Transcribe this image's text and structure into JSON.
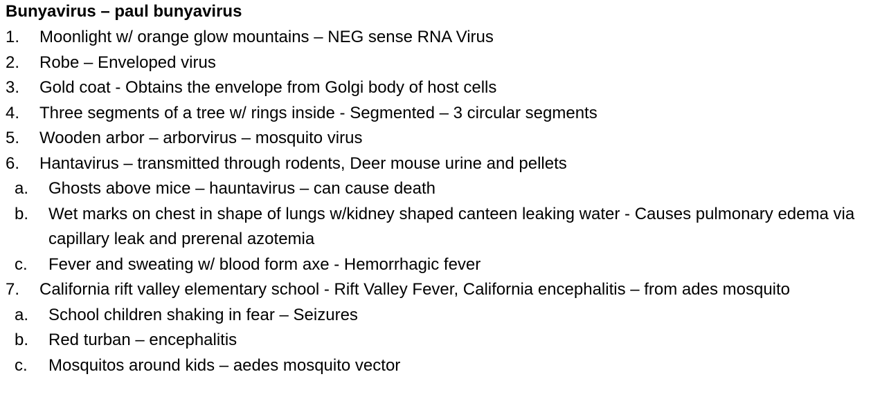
{
  "document": {
    "title": "Bunyavirus – paul bunyavirus",
    "items": [
      {
        "marker": "1.",
        "text": "Moonlight w/ orange glow mountains – NEG sense RNA Virus"
      },
      {
        "marker": "2.",
        "text": "Robe – Enveloped virus"
      },
      {
        "marker": "3.",
        "text": "Gold coat - Obtains the envelope from Golgi body of host cells"
      },
      {
        "marker": "4.",
        "text": "Three segments of a tree w/ rings inside - Segmented – 3 circular segments"
      },
      {
        "marker": "5.",
        "text": "Wooden arbor – arborvirus – mosquito virus"
      },
      {
        "marker": "6.",
        "text": "Hantavirus – transmitted through rodents, Deer mouse urine and pellets"
      },
      {
        "marker": "a.",
        "text": "Ghosts above mice – hauntavirus – can cause death"
      },
      {
        "marker": "b.",
        "text": "Wet marks on chest in shape of lungs w/kidney shaped canteen leaking water - Causes pulmonary edema via capillary leak and prerenal azotemia"
      },
      {
        "marker": "c.",
        "text": "Fever and sweating w/ blood form axe - Hemorrhagic fever"
      },
      {
        "marker": "7.",
        "text": "California rift valley elementary school - Rift Valley Fever, California encephalitis – from ades mosquito"
      },
      {
        "marker": "a.",
        "text": "School children shaking in fear – Seizures"
      },
      {
        "marker": "b.",
        "text": "Red turban – encephalitis"
      },
      {
        "marker": "c.",
        "text": "Mosquitos around kids – aedes mosquito vector"
      }
    ]
  }
}
